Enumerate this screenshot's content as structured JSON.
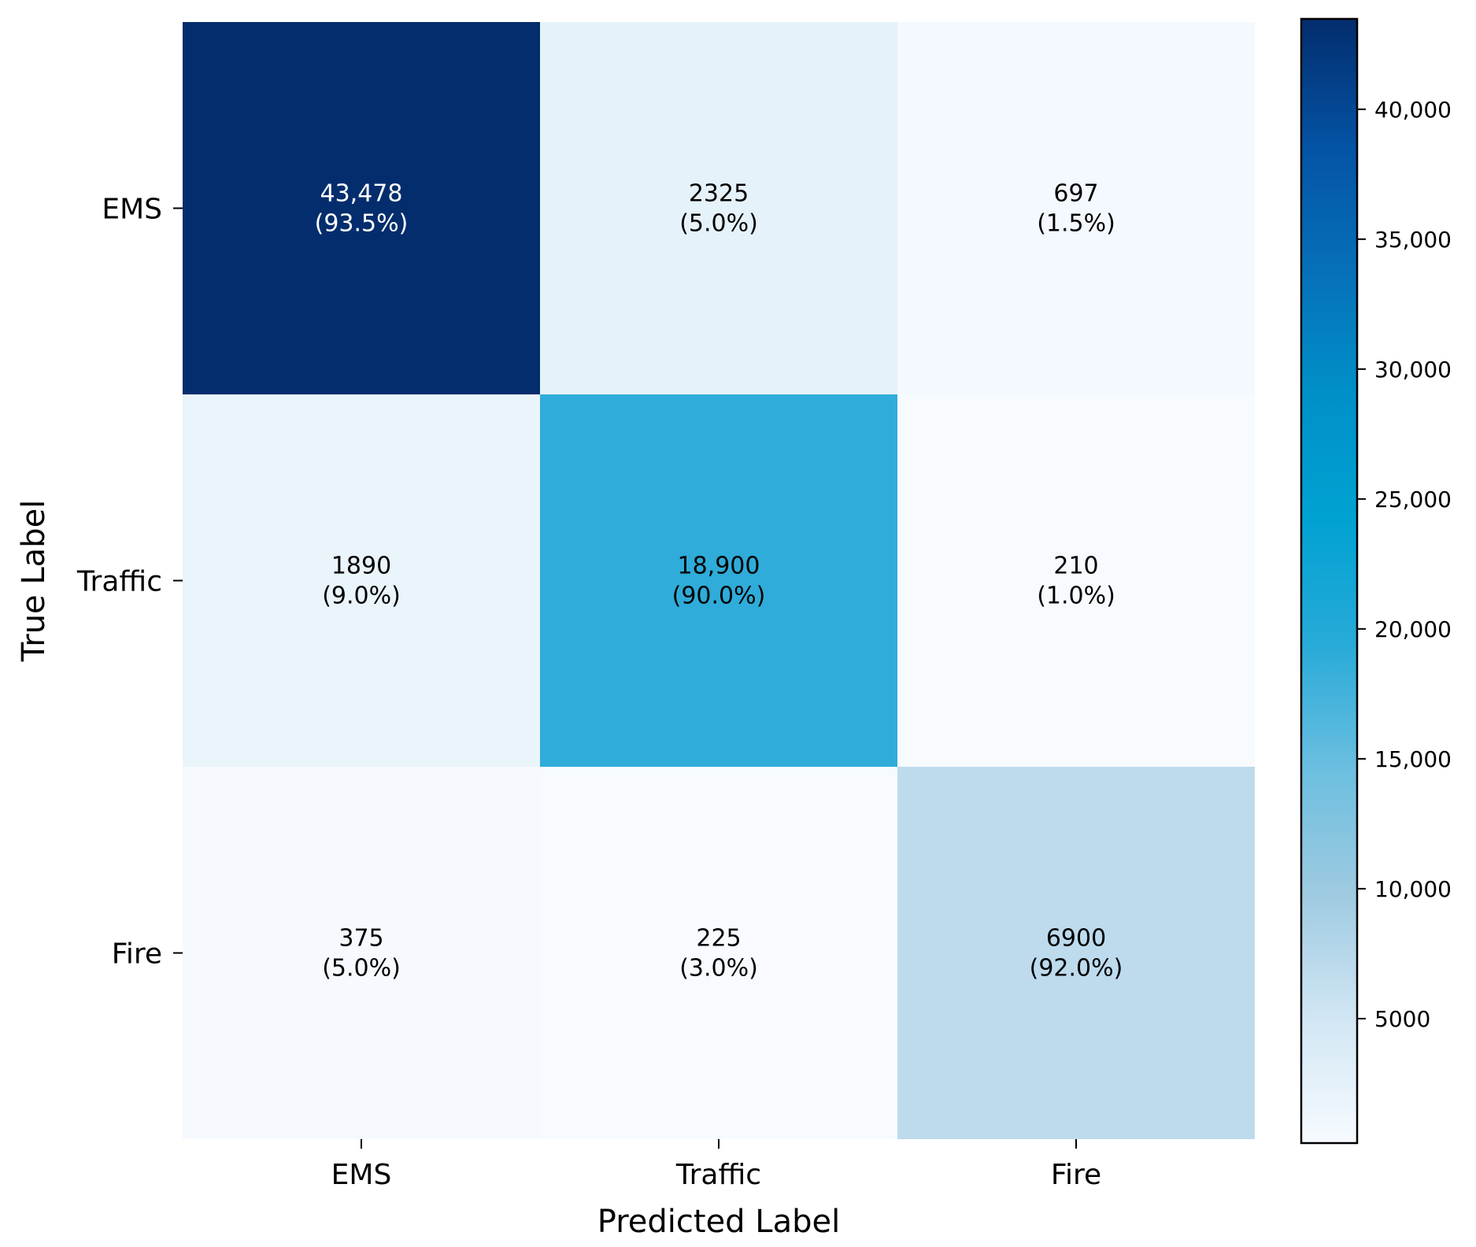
{
  "chart_data": {
    "type": "heatmap",
    "title": "",
    "xlabel": "Predicted Label",
    "ylabel": "True Label",
    "x_categories": [
      "EMS",
      "Traffic",
      "Fire"
    ],
    "y_categories": [
      "EMS",
      "Traffic",
      "Fire"
    ],
    "values": [
      [
        43478,
        2325,
        697
      ],
      [
        1890,
        18900,
        210
      ],
      [
        375,
        225,
        6900
      ]
    ],
    "cell_labels": [
      [
        {
          "count": "43,478",
          "pct": "(93.5%)"
        },
        {
          "count": "2325",
          "pct": "(5.0%)"
        },
        {
          "count": "697",
          "pct": "(1.5%)"
        }
      ],
      [
        {
          "count": "1890",
          "pct": "(9.0%)"
        },
        {
          "count": "18,900",
          "pct": "(90.0%)"
        },
        {
          "count": "210",
          "pct": "(1.0%)"
        }
      ],
      [
        {
          "count": "375",
          "pct": "(5.0%)"
        },
        {
          "count": "225",
          "pct": "(3.0%)"
        },
        {
          "count": "6900",
          "pct": "(92.0%)"
        }
      ]
    ],
    "colormap": "Blues",
    "colorbar": {
      "vmin": 210,
      "vmax": 43478,
      "ticks": [
        5000,
        10000,
        15000,
        20000,
        25000,
        30000,
        35000,
        40000
      ],
      "tick_labels": [
        "5000",
        "10,000",
        "15,000",
        "20,000",
        "25,000",
        "30,000",
        "35,000",
        "40,000"
      ],
      "stops": [
        "#f7fbff",
        "#d1e6f4",
        "#9ecae1",
        "#6bbfe0",
        "#27aad8",
        "#00a2d2",
        "#0090c8",
        "#0670b8",
        "#0452a3",
        "#032d6d"
      ]
    }
  }
}
